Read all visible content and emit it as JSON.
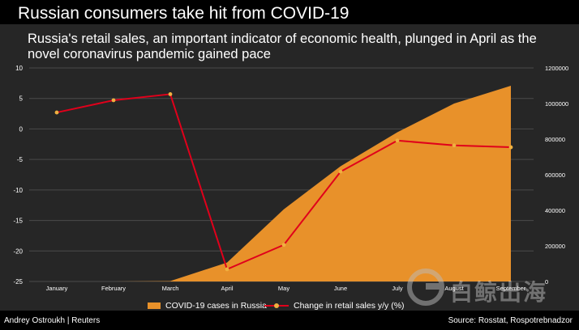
{
  "header": {
    "title": "Russian consumers take hit from COVID-19",
    "subtitle": "Russia's retail sales, an important indicator of economic health, plunged in April as the novel coronavirus pandemic gained pace"
  },
  "footer": {
    "credit": "Andrey Ostroukh | Reuters",
    "source": "Source: Rosstat,  Rospotrebnadzor"
  },
  "watermark": {
    "text": "白鲸出海"
  },
  "colors": {
    "area": "#e8912a",
    "line": "#e0001b",
    "marker": "#f0b040",
    "grid": "#4a4a4a",
    "panel": "#262626"
  },
  "chart_data": {
    "type": "line",
    "categories": [
      "January",
      "February",
      "March",
      "April",
      "May",
      "June",
      "July",
      "August",
      "September"
    ],
    "y_left": {
      "ticks": [
        "10",
        "5",
        "0",
        "-5",
        "-10",
        "-15",
        "-20",
        "-25"
      ],
      "range": [
        -25,
        10
      ]
    },
    "y_right": {
      "ticks": [
        "1200000",
        "1000000",
        "800000",
        "600000",
        "400000",
        "200000",
        "0"
      ],
      "range": [
        0,
        1200000
      ]
    },
    "grid": true,
    "legend_position": "bottom",
    "series": [
      {
        "name": "COVID-19 cases in Russia",
        "type": "area",
        "axis": "right",
        "values": [
          2,
          2,
          2300,
          106500,
          405800,
          647800,
          838500,
          1000000,
          1100000
        ]
      },
      {
        "name": "Change in retail sales y/y (%)",
        "type": "line",
        "axis": "left",
        "values": [
          2.7,
          4.7,
          5.7,
          -23.0,
          -19.0,
          -7.0,
          -1.9,
          -2.7,
          -3.0
        ]
      }
    ]
  }
}
